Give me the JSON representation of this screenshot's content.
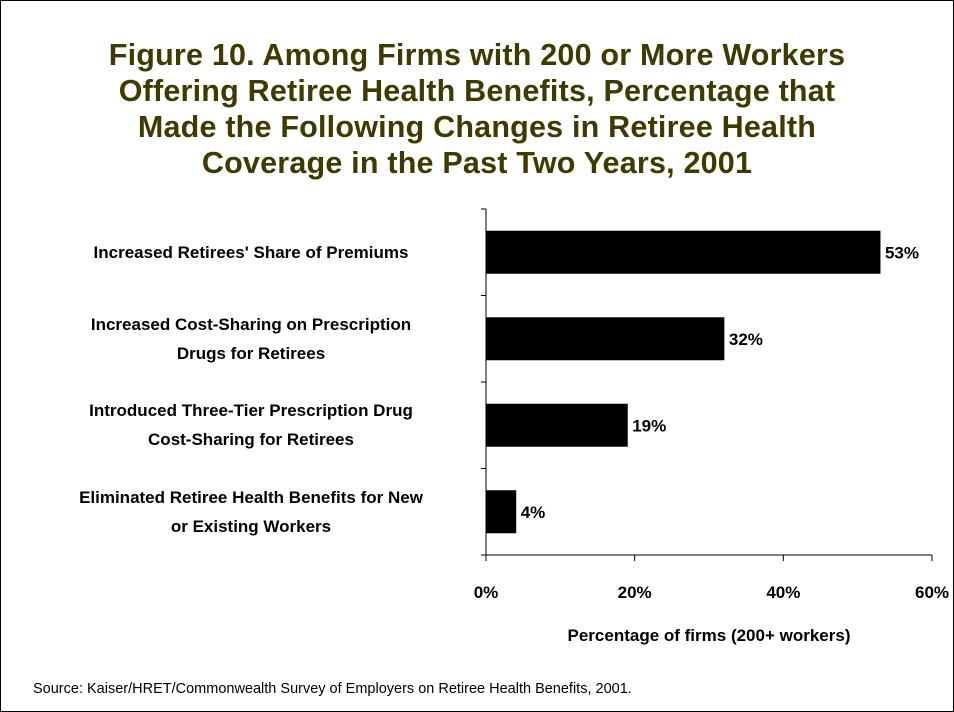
{
  "colors": {
    "title": "#3d3b00",
    "bar": "#000000",
    "text": "#000000",
    "background": "#ffffff"
  },
  "title_lines": [
    "Figure 10. Among Firms with 200 or More Workers",
    "Offering Retiree Health Benefits, Percentage that",
    "Made the Following Changes in Retiree Health",
    "Coverage in the Past Two Years, 2001"
  ],
  "source": "Source: Kaiser/HRET/Commonwealth Survey of Employers on Retiree Health Benefits, 2001.",
  "chart_data": {
    "type": "bar",
    "orientation": "horizontal",
    "title": "Figure 10. Among Firms with 200 or More Workers Offering Retiree Health Benefits, Percentage that Made the Following Changes in Retiree Health Coverage in the Past Two Years, 2001",
    "categories": [
      "Increased Retirees' Share of Premiums",
      "Increased Cost-Sharing on Prescription Drugs for Retirees",
      "Introduced Three-Tier Prescription Drug Cost-Sharing for Retirees",
      "Eliminated Retiree Health Benefits for New or Existing Workers"
    ],
    "category_label_lines": [
      [
        "Increased Retirees' Share of Premiums"
      ],
      [
        "Increased Cost-Sharing on Prescription",
        "Drugs for Retirees"
      ],
      [
        "Introduced Three-Tier Prescription Drug",
        "Cost-Sharing for Retirees"
      ],
      [
        "Eliminated Retiree Health Benefits for New",
        "or Existing Workers"
      ]
    ],
    "values": [
      53,
      32,
      19,
      4
    ],
    "data_labels": [
      "53%",
      "32%",
      "19%",
      "4%"
    ],
    "xlabel": "Percentage of firms (200+ workers)",
    "ylabel": "",
    "xlim": [
      0,
      60
    ],
    "xticks": [
      0,
      20,
      40,
      60
    ],
    "xtick_labels": [
      "0%",
      "20%",
      "40%",
      "60%"
    ],
    "grid": false,
    "legend": "none"
  }
}
